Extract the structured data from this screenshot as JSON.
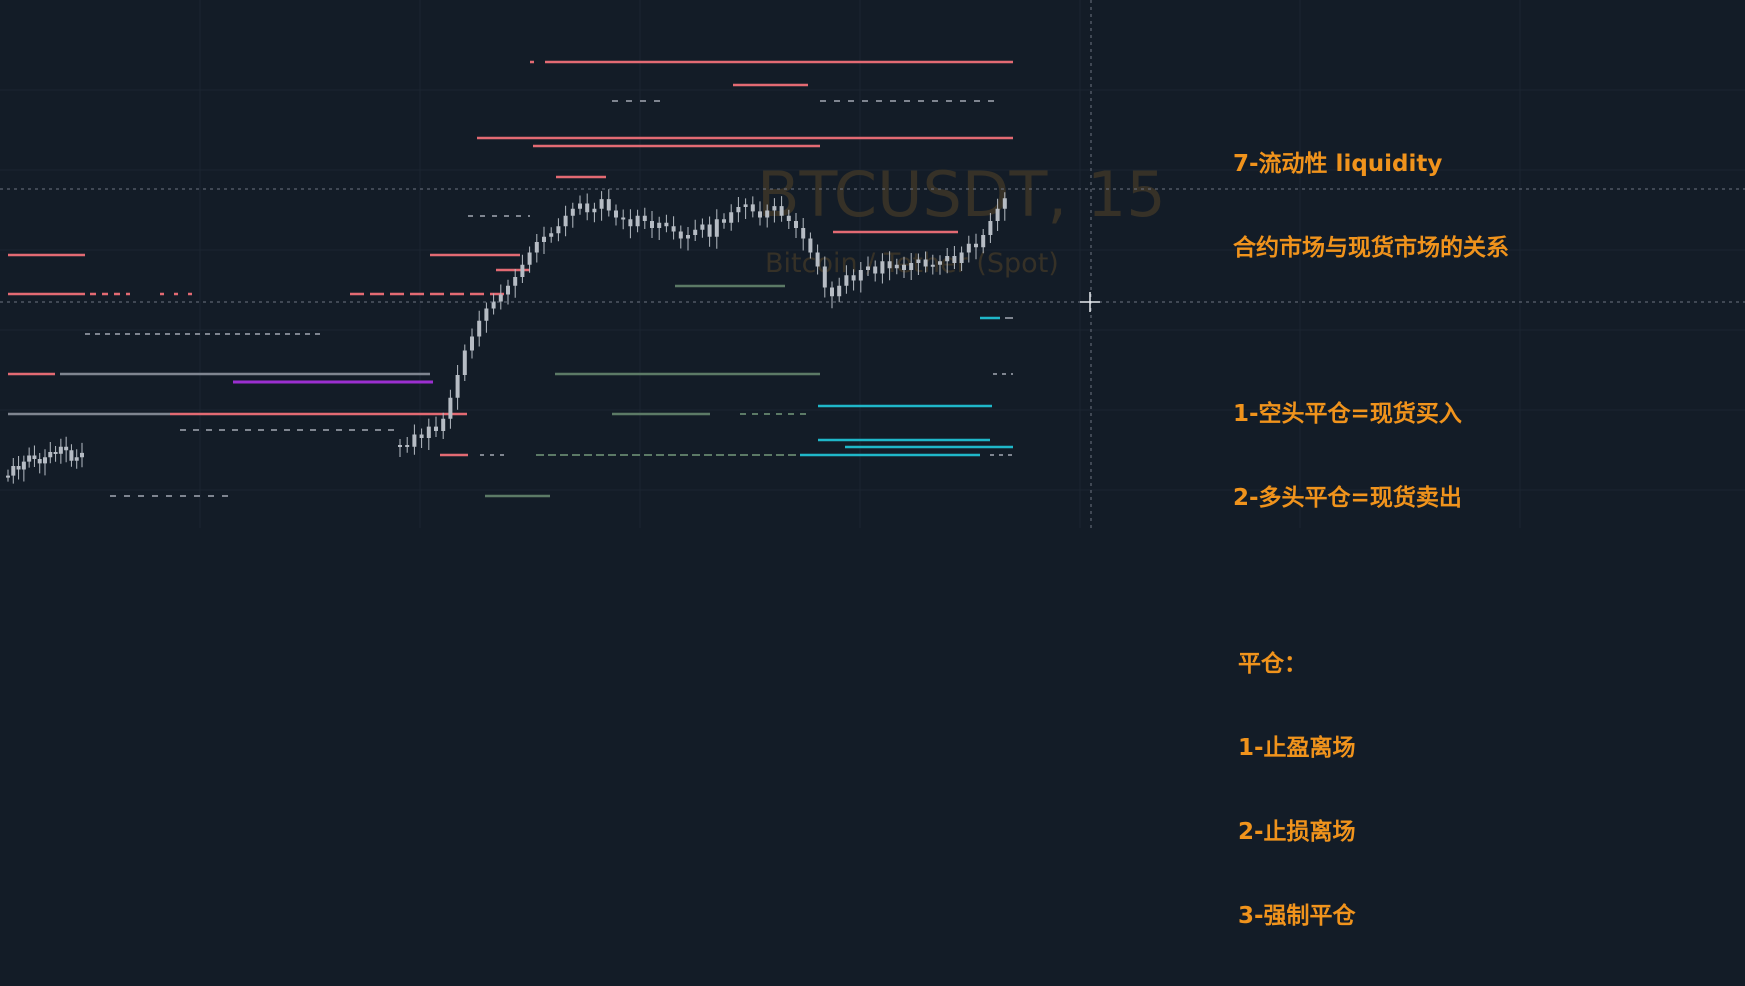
{
  "chart": {
    "symbol": "BTCUSDT, 15",
    "description": "Bitcoin / Tether (Spot)"
  },
  "colors": {
    "background": "#131c27",
    "liquidity_red": "#e36a73",
    "liquidity_gray": "#7f8590",
    "liquidity_green": "#5c7a66",
    "liquidity_cyan": "#1fb7c9",
    "liquidity_purple": "#9b2fd0",
    "candles": "#b6bcc4",
    "notes_text": "#f0931c",
    "crosshair": "#6d7480"
  },
  "notes": {
    "title_line1": "7-流动性 liquidity",
    "title_line2": "合约市场与现货市场的关系",
    "rule1": "1-空头平仓=现货买入",
    "rule2": "2-多头平仓=现货卖出",
    "close_heading": "平仓：",
    "close1": "1-止盈离场",
    "close2": "2-止损离场",
    "close3": "3-强制平仓"
  },
  "icons": {
    "crosshair": "crosshair-cursor-icon"
  },
  "chart_data": {
    "type": "line",
    "series": [
      {
        "values": [
          45,
          56,
          52,
          61,
          68,
          64,
          59,
          66,
          72,
          70,
          78,
          74,
          62,
          66,
          71,
          80,
          78,
          92,
          88,
          101,
          96,
          110,
          134,
          160,
          188,
          204,
          222,
          236,
          244,
          252,
          262,
          272,
          286,
          300,
          312,
          318,
          322,
          330,
          342,
          350,
          356,
          346,
          350,
          361,
          348,
          340,
          338,
          330,
          342,
          336,
          328,
          334,
          330,
          324,
          316,
          320,
          326,
          332,
          318,
          338,
          334,
          346,
          352,
          355,
          347,
          340,
          348,
          353,
          342,
          336,
          328,
          316,
          300,
          284,
          260,
          250,
          262,
          274,
          268,
          280,
          284,
          276,
          290,
          282,
          286,
          280,
          288,
          292,
          284,
          286,
          290,
          296,
          288,
          300,
          310,
          306,
          320,
          336,
          350,
          362
        ]
      }
    ]
  }
}
